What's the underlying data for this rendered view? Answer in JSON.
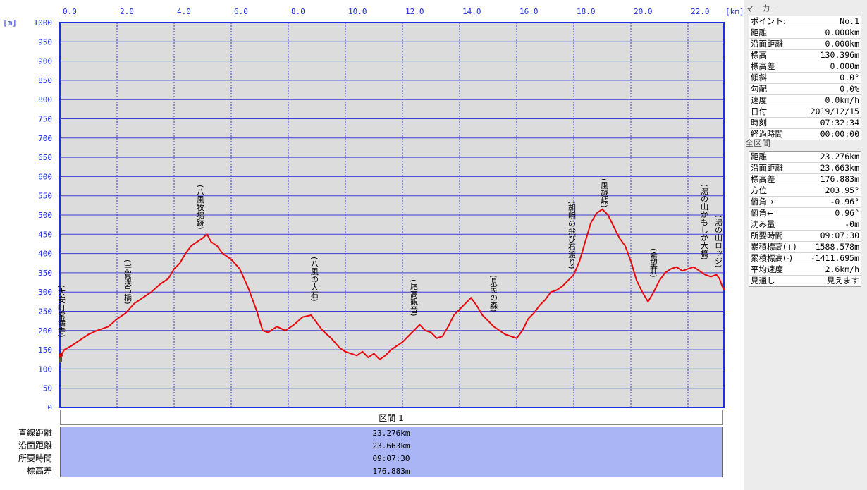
{
  "chart_data": {
    "type": "line",
    "x_unit_label": "[km]",
    "y_unit_label": "[m]",
    "xlim": [
      0,
      23.276
    ],
    "ylim": [
      0,
      1000
    ],
    "x_ticks": [
      "0.0",
      "2.0",
      "4.0",
      "6.0",
      "8.0",
      "10.0",
      "12.0",
      "14.0",
      "16.0",
      "18.0",
      "20.0",
      "22.0"
    ],
    "y_ticks": [
      "1000",
      "950",
      "900",
      "850",
      "800",
      "750",
      "700",
      "650",
      "600",
      "550",
      "500",
      "450",
      "400",
      "350",
      "300",
      "250",
      "200",
      "150",
      "100",
      "50",
      "0"
    ],
    "grid": true,
    "series": [
      {
        "color": "#e8080c",
        "x": [
          0,
          0.15,
          0.4,
          0.7,
          1.0,
          1.3,
          1.7,
          2.0,
          2.3,
          2.6,
          2.9,
          3.2,
          3.5,
          3.8,
          4.0,
          4.2,
          4.4,
          4.6,
          4.8,
          5.0,
          5.15,
          5.3,
          5.5,
          5.7,
          6.0,
          6.3,
          6.6,
          6.9,
          7.1,
          7.3,
          7.6,
          7.9,
          8.2,
          8.5,
          8.8,
          9.0,
          9.2,
          9.5,
          9.8,
          10.0,
          10.2,
          10.4,
          10.6,
          10.8,
          11.0,
          11.2,
          11.4,
          11.6,
          11.8,
          12.0,
          12.2,
          12.4,
          12.6,
          12.8,
          13.0,
          13.2,
          13.4,
          13.6,
          13.8,
          14.0,
          14.2,
          14.4,
          14.6,
          14.8,
          15.0,
          15.2,
          15.4,
          15.6,
          15.8,
          16.0,
          16.2,
          16.4,
          16.6,
          16.8,
          17.0,
          17.2,
          17.4,
          17.6,
          17.8,
          18.0,
          18.2,
          18.4,
          18.6,
          18.8,
          19.0,
          19.2,
          19.4,
          19.6,
          19.8,
          20.0,
          20.2,
          20.4,
          20.6,
          20.8,
          21.0,
          21.2,
          21.4,
          21.6,
          21.8,
          22.0,
          22.2,
          22.4,
          22.6,
          22.8,
          23.0,
          23.1,
          23.2,
          23.276
        ],
        "y": [
          130,
          150,
          160,
          175,
          190,
          200,
          210,
          230,
          245,
          270,
          285,
          300,
          320,
          335,
          360,
          375,
          400,
          420,
          430,
          440,
          450,
          430,
          420,
          400,
          385,
          360,
          310,
          250,
          200,
          195,
          210,
          200,
          215,
          235,
          240,
          220,
          200,
          180,
          155,
          145,
          140,
          135,
          145,
          130,
          140,
          125,
          135,
          150,
          160,
          170,
          185,
          200,
          215,
          200,
          195,
          180,
          185,
          210,
          240,
          255,
          270,
          285,
          265,
          240,
          225,
          210,
          200,
          190,
          185,
          180,
          200,
          230,
          245,
          265,
          280,
          300,
          305,
          315,
          330,
          345,
          380,
          430,
          480,
          505,
          515,
          500,
          470,
          440,
          420,
          380,
          330,
          300,
          275,
          300,
          330,
          350,
          360,
          365,
          355,
          360,
          365,
          355,
          345,
          340,
          345,
          335,
          315,
          305
        ]
      }
    ]
  },
  "plot_labels": [
    {
      "text": "(大安町常満寺)"
    },
    {
      "text": "(宇賀渓吊橋)"
    },
    {
      "text": "(八風牧場跡)"
    },
    {
      "text": "(八風の大石)"
    },
    {
      "text": "(尾高観音)"
    },
    {
      "text": "(県民の森)"
    },
    {
      "text": "(朝明の飛び石渡り)"
    },
    {
      "text": "(風越峠)"
    },
    {
      "text": "(希望荘)"
    },
    {
      "text": "(湯の山かもしか大橋)"
    },
    {
      "text": "(湯の山ロッジ)"
    }
  ],
  "segment": {
    "header": "区間 1",
    "labels": [
      "直線距離",
      "沿面距離",
      "所要時間",
      "標高差"
    ],
    "values": [
      "23.276km",
      "23.663km",
      "09:07:30",
      "176.883m"
    ]
  },
  "marker_panel": {
    "title": "マーカー",
    "rows": [
      {
        "k": "ポイント:",
        "v": "No.1"
      },
      {
        "k": "距離",
        "v": "0.000km"
      },
      {
        "k": "沿面距離",
        "v": "0.000km"
      },
      {
        "k": "標高",
        "v": "130.396m"
      },
      {
        "k": "標高差",
        "v": "0.000m"
      },
      {
        "k": "傾斜",
        "v": "0.0°"
      },
      {
        "k": "勾配",
        "v": "0.0%"
      },
      {
        "k": "速度",
        "v": "0.0km/h"
      },
      {
        "k": "日付",
        "v": "2019/12/15"
      },
      {
        "k": "時刻",
        "v": "07:32:34"
      },
      {
        "k": "経過時間",
        "v": "00:00:00"
      }
    ]
  },
  "total_panel": {
    "title": "全区間",
    "rows": [
      {
        "k": "距離",
        "v": "23.276km"
      },
      {
        "k": "沿面距離",
        "v": "23.663km"
      },
      {
        "k": "標高差",
        "v": "176.883m"
      },
      {
        "k": "方位",
        "v": "203.95°"
      },
      {
        "k": "俯角→",
        "v": "-0.96°"
      },
      {
        "k": "俯角←",
        "v": "0.96°"
      },
      {
        "k": "沈み量",
        "v": "-0m"
      },
      {
        "k": "所要時間",
        "v": "09:07:30"
      },
      {
        "k": "累積標高(+)",
        "v": "1588.578m"
      },
      {
        "k": "累積標高(-)",
        "v": "-1411.695m"
      },
      {
        "k": "平均速度",
        "v": "2.6km/h"
      },
      {
        "k": "見通し",
        "v": "見えます"
      }
    ]
  },
  "colors": {
    "axis_text": "#1b2ee0",
    "grid": "#3c3cd2",
    "plot_bg": "#dcdcdc",
    "line": "#e8080c",
    "segment_bg": "#a9b5f5"
  }
}
